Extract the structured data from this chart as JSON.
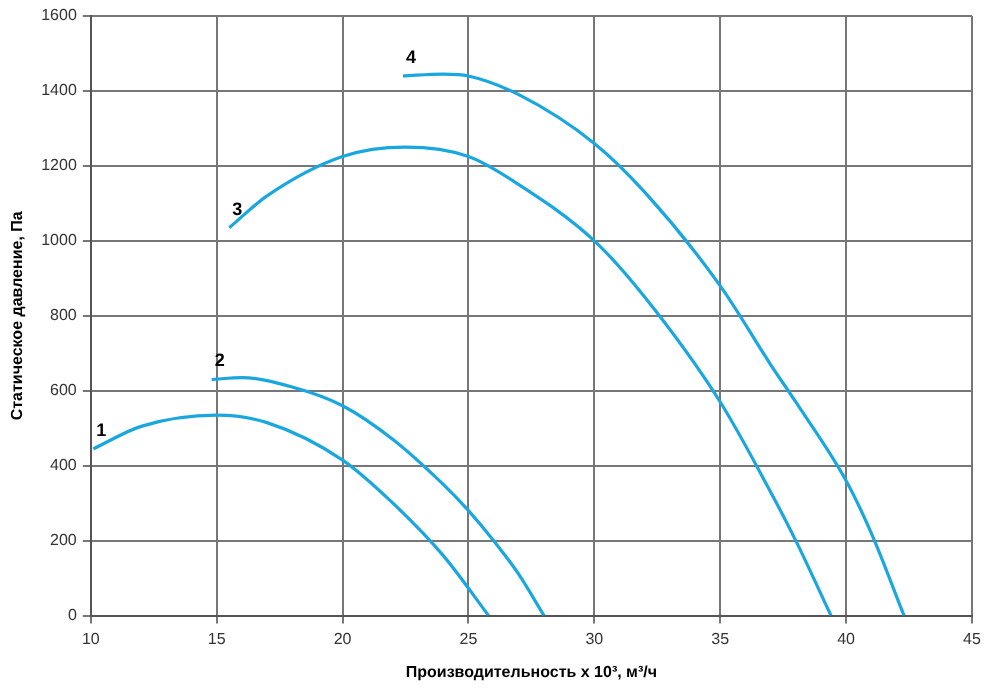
{
  "chart_data": {
    "type": "line",
    "xlabel": "Производительность х 10³, м³/ч",
    "ylabel": "Статическое давление, Па",
    "xlim": [
      10,
      45
    ],
    "xticks": [
      10,
      15,
      20,
      25,
      30,
      35,
      40,
      45
    ],
    "ylim": [
      0,
      1600
    ],
    "yticks": [
      0,
      200,
      400,
      600,
      800,
      1000,
      1200,
      1400,
      1600
    ],
    "grid": true,
    "legend": false,
    "marker": "none",
    "line_style": "solid",
    "series": [
      {
        "color": "#1aa7e0",
        "x": [
          10.1,
          12,
          15,
          17,
          20,
          22,
          24,
          25.8
        ],
        "values": [
          445,
          505,
          535,
          515,
          415,
          300,
          160,
          0
        ]
      },
      {
        "color": "#1aa7e0",
        "x": [
          14.8,
          16,
          18,
          20,
          22,
          24,
          25,
          26,
          27,
          28
        ],
        "values": [
          630,
          635,
          610,
          560,
          470,
          350,
          280,
          200,
          110,
          0
        ]
      },
      {
        "color": "#1aa7e0",
        "x": [
          15.5,
          17,
          20,
          22.5,
          25,
          27,
          30,
          32,
          35,
          37,
          38,
          39.4
        ],
        "values": [
          1035,
          1120,
          1225,
          1250,
          1225,
          1150,
          1000,
          850,
          570,
          330,
          200,
          0
        ]
      },
      {
        "color": "#1aa7e0",
        "x": [
          22.4,
          24,
          25,
          27,
          30,
          32,
          35,
          37,
          38,
          40,
          41,
          42.3
        ],
        "values": [
          1440,
          1445,
          1440,
          1390,
          1260,
          1130,
          880,
          670,
          570,
          360,
          220,
          0
        ]
      }
    ],
    "annotations": [
      {
        "text": "1",
        "x": 10.1,
        "y": 445
      },
      {
        "text": "2",
        "x": 14.8,
        "y": 630
      },
      {
        "text": "3",
        "x": 15.5,
        "y": 1035
      },
      {
        "text": "4",
        "x": 22.4,
        "y": 1440
      }
    ]
  }
}
